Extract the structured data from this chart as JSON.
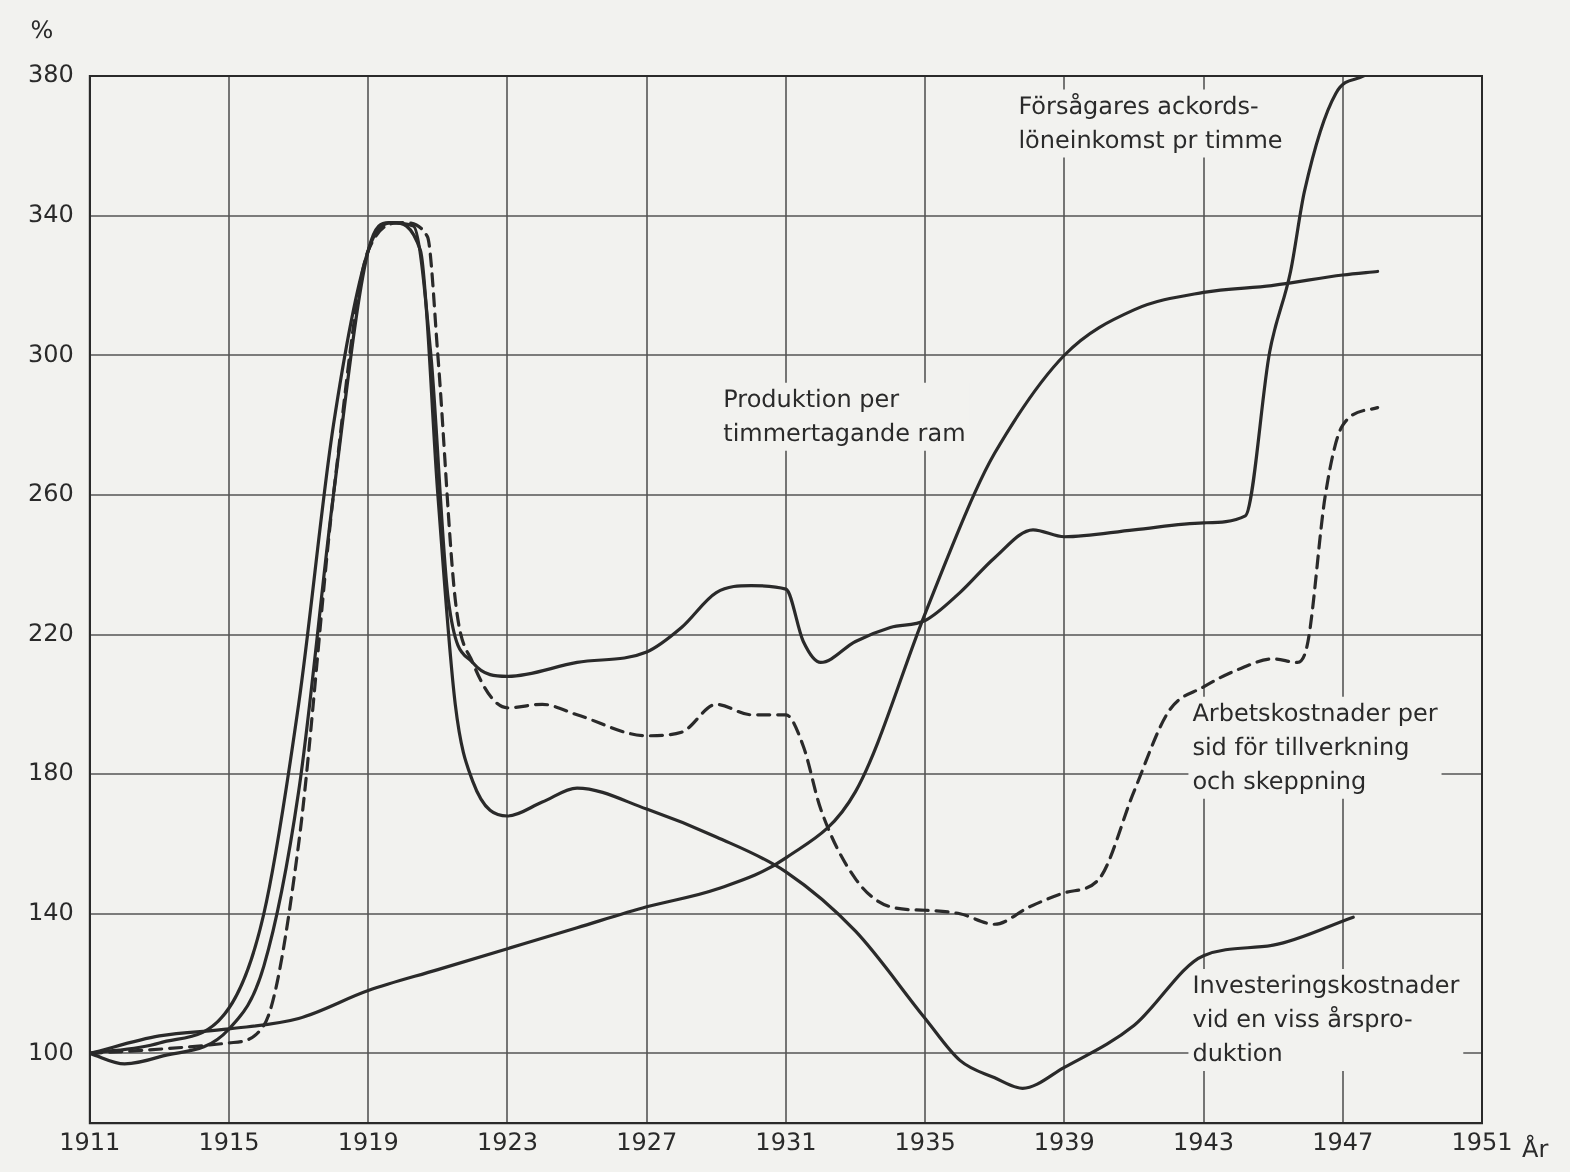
{
  "chart_data": {
    "type": "line",
    "ylabel": "%",
    "xlabel": "År",
    "xlim": [
      1911,
      1951
    ],
    "xticks": [
      1911,
      1915,
      1919,
      1923,
      1927,
      1931,
      1935,
      1939,
      1943,
      1947,
      1951
    ],
    "ylim": [
      80,
      380
    ],
    "yticks": [
      100,
      140,
      180,
      220,
      260,
      300,
      340,
      380
    ],
    "grid": true,
    "legend": false,
    "marker": "none",
    "series": [
      {
        "name": "Försågares ackords-\nlöneinkomst pr timme",
        "color": "#2a2a2a",
        "x": [
          1911,
          1912,
          1913,
          1915,
          1916,
          1917,
          1918,
          1919,
          1919.6,
          1920.3,
          1920.8,
          1921.3,
          1922,
          1923,
          1925,
          1927,
          1928,
          1929,
          1930,
          1931,
          1931.5,
          1932,
          1933,
          1934,
          1935,
          1936,
          1937,
          1938.1,
          1939,
          1941,
          1943,
          1944.2,
          1944.9,
          1945.5,
          1945.9,
          1946.8,
          1947.6
        ],
        "values": [
          100,
          97,
          99,
          107,
          125,
          175,
          260,
          330,
          338,
          337,
          300,
          230,
          212,
          208,
          212,
          215,
          222,
          232,
          234,
          233,
          218,
          212,
          218,
          222,
          224,
          232,
          242,
          250,
          248,
          250,
          252,
          254,
          301,
          324,
          347,
          375,
          380
        ]
      },
      {
        "name": "Produktion per\ntimmertagande ram",
        "color": "#2a2a2a",
        "x": [
          1911,
          1913,
          1915,
          1917,
          1919,
          1921,
          1923,
          1925,
          1927,
          1929,
          1931,
          1933,
          1935,
          1936.4,
          1937,
          1939,
          1941,
          1943,
          1945,
          1947,
          1948
        ],
        "values": [
          100,
          105,
          107,
          110,
          118,
          124,
          130,
          136,
          142,
          147,
          156,
          175,
          226,
          260,
          272,
          300,
          313,
          318,
          320,
          323,
          324
        ]
      },
      {
        "name": "Arbetskostnader per\nsid för tillverkning\noch skeppning",
        "color": "#2a2a2a",
        "line_style": "dashed",
        "x": [
          1911,
          1915,
          1916,
          1917,
          1918,
          1919,
          1920,
          1920.7,
          1921,
          1921.5,
          1922,
          1923,
          1924,
          1925,
          1927,
          1928,
          1929,
          1930,
          1931,
          1931.5,
          1932,
          1933,
          1934,
          1935,
          1936,
          1937,
          1938,
          1939,
          1940,
          1941,
          1942,
          1943,
          1944,
          1945,
          1945.7,
          1946,
          1946.5,
          1947,
          1948
        ],
        "values": [
          100,
          103,
          108,
          160,
          260,
          330,
          338,
          334,
          300,
          230,
          212,
          199,
          200,
          197,
          191,
          192,
          200,
          197,
          197,
          188,
          170,
          150,
          142,
          141,
          140,
          137,
          142,
          146,
          150,
          175,
          198,
          205,
          210,
          213,
          212,
          218,
          260,
          280,
          285
        ]
      },
      {
        "name": "Investeringskostnader\nvid en viss årspro-\nduktion",
        "color": "#2a2a2a",
        "x": [
          1911,
          1913,
          1915,
          1916,
          1917,
          1918,
          1919,
          1919.7,
          1920.5,
          1921,
          1921.5,
          1922,
          1923,
          1924,
          1925,
          1927,
          1929,
          1931,
          1933,
          1935,
          1936,
          1937,
          1937.8,
          1939,
          1941,
          1943,
          1945,
          1947.3
        ],
        "values": [
          100,
          103,
          113,
          140,
          200,
          280,
          330,
          338,
          330,
          260,
          200,
          178,
          168,
          172,
          176,
          170,
          162,
          152,
          135,
          110,
          98,
          93,
          90,
          96,
          108,
          128,
          131,
          139
        ]
      }
    ]
  }
}
